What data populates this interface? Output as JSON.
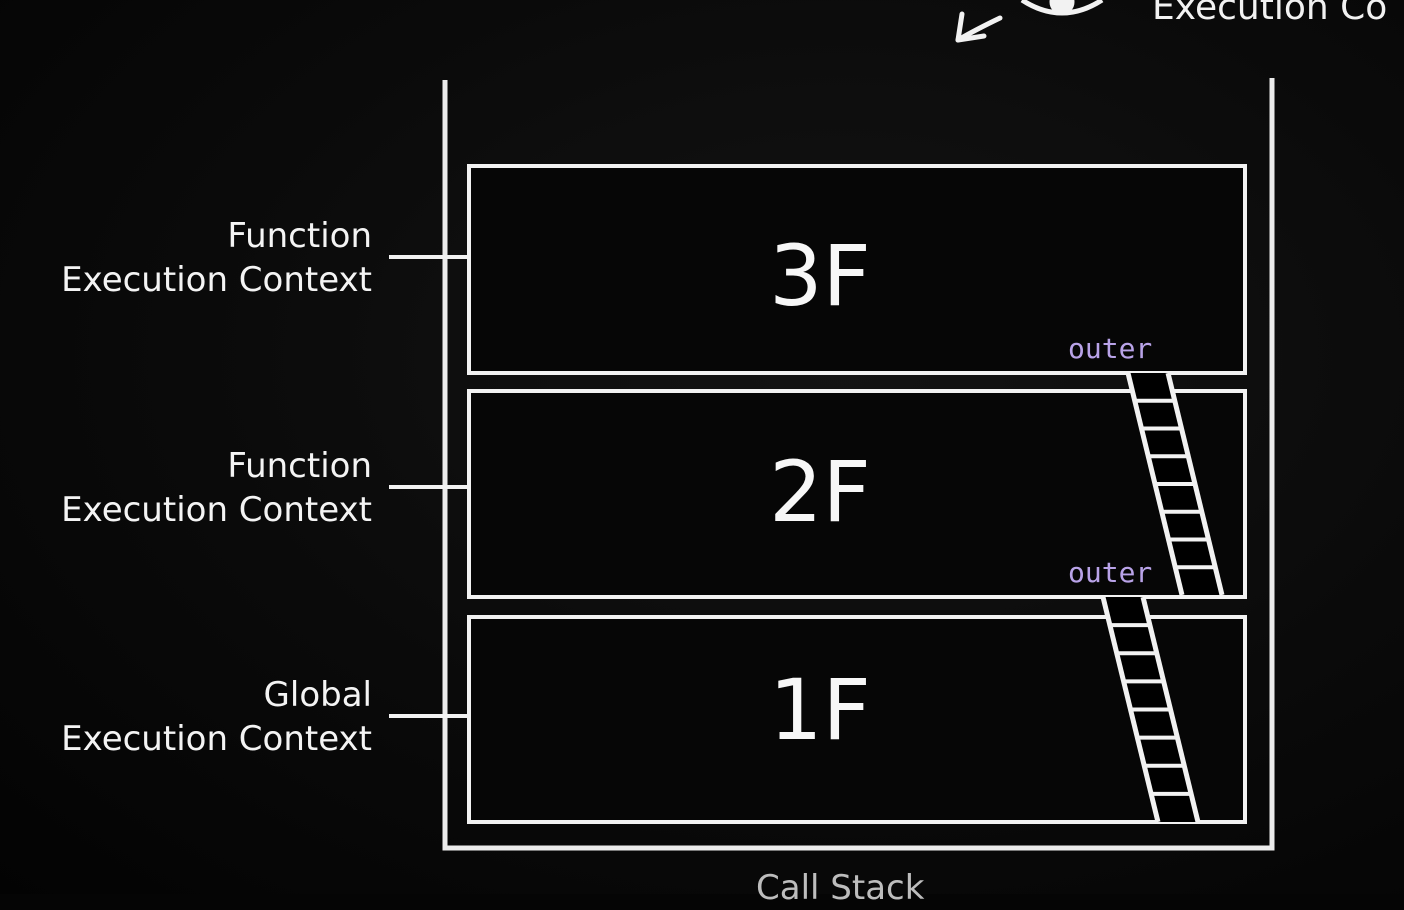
{
  "top_label": "Execution Co",
  "stack_label": "Call Stack",
  "frames": [
    {
      "floor": "3F",
      "label_line1": "Function",
      "label_line2": "Execution Context",
      "outer": "outer"
    },
    {
      "floor": "2F",
      "label_line1": "Function",
      "label_line2": "Execution Context",
      "outer": "outer"
    },
    {
      "floor": "1F",
      "label_line1": "Global",
      "label_line2": "Execution Context"
    }
  ],
  "colors": {
    "background": "#050505",
    "chalk": "#f2f2f2",
    "outer": "#b9a3e8"
  },
  "icons": [
    "arrow-icon",
    "eye-icon"
  ]
}
